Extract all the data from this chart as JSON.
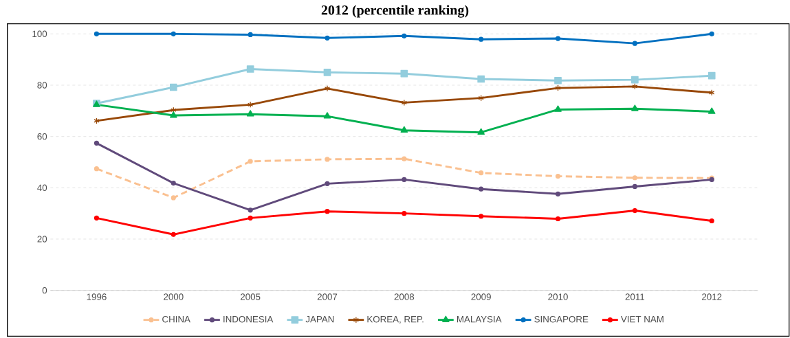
{
  "chart_data": {
    "type": "line",
    "title": "2012 (percentile ranking)",
    "categories": [
      "1996",
      "2000",
      "2005",
      "2007",
      "2008",
      "2009",
      "2010",
      "2011",
      "2012"
    ],
    "ylim": [
      0,
      100
    ],
    "yticks": [
      0,
      20,
      40,
      60,
      80,
      100
    ],
    "grid": "y",
    "legend": "bottom",
    "series": [
      {
        "name": "CHINA",
        "color": "#fac090",
        "marker": "circle",
        "line_style": "dashed",
        "values": [
          47.4,
          36.1,
          50.3,
          51.1,
          51.3,
          45.8,
          44.5,
          43.9,
          43.8
        ]
      },
      {
        "name": "INDONESIA",
        "color": "#604a7b",
        "marker": "circle",
        "line_style": "solid",
        "values": [
          57.4,
          41.8,
          31.3,
          41.6,
          43.2,
          39.5,
          37.6,
          40.5,
          43.2
        ]
      },
      {
        "name": "JAPAN",
        "color": "#93cddd",
        "marker": "square",
        "line_style": "solid",
        "values": [
          72.9,
          79.2,
          86.3,
          85.0,
          84.5,
          82.4,
          81.8,
          82.1,
          83.7
        ]
      },
      {
        "name": "KOREA, REP.",
        "color": "#984807",
        "marker": "cross",
        "line_style": "solid",
        "values": [
          66.1,
          70.3,
          72.4,
          78.7,
          73.2,
          75.0,
          78.9,
          79.5,
          77.1
        ]
      },
      {
        "name": "MALAYSIA",
        "color": "#00b050",
        "marker": "triangle",
        "line_style": "solid",
        "values": [
          72.4,
          68.2,
          68.7,
          67.9,
          62.4,
          61.6,
          70.5,
          70.8,
          69.7
        ]
      },
      {
        "name": "SINGAPORE",
        "color": "#0070c0",
        "marker": "circle",
        "line_style": "solid",
        "values": [
          100,
          100,
          99.7,
          98.4,
          99.2,
          97.9,
          98.2,
          96.3,
          100
        ]
      },
      {
        "name": "VIET NAM",
        "color": "#ff0000",
        "marker": "circle",
        "line_style": "solid",
        "values": [
          28.2,
          21.8,
          28.2,
          30.8,
          30.0,
          28.9,
          27.9,
          31.1,
          27.1
        ]
      }
    ]
  }
}
